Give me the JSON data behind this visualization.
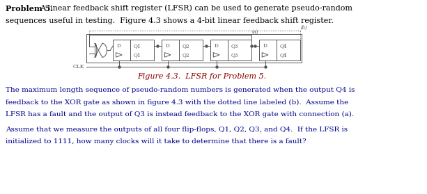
{
  "title_bold": "Problem 5.",
  "title_rest": "  A linear feedback shift register (LFSR) can be used to generate pseudo-random",
  "line2": "sequences useful in testing.  Figure 4.3 shows a 4-bit linear feedback shift register.",
  "figure_caption": "Figure 4.3.  LFSR for Problem 5.",
  "para1_line1": "The maximum length sequence of pseudo-random numbers is generated when the output Q4 is",
  "para1_line2": "feedback to the XOR gate as shown in figure 4.3 with the dotted line labeled (b).  Assume the",
  "para1_line3": "LFSR has a fault and the output of Q3 is instead feedback to the XOR gate with connection (a).",
  "para2_line1": "Assume that we measure the outputs of all four flip-flops, Q1, Q2, Q3, and Q4.  If the LFSR is",
  "para2_line2": "initialized to 1111, how many clocks will it take to determine that there is a fault?",
  "bg_color": "#ffffff",
  "text_color": "#000000",
  "caption_color": "#8B0000",
  "body_color": "#00008B",
  "diagram_color": "#555555",
  "title_fs": 8.0,
  "body_fs": 7.5,
  "caption_fs": 8.0,
  "diagram_label_fs": 5.2
}
